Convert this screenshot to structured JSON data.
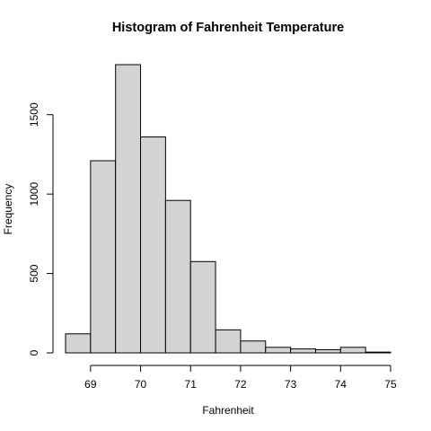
{
  "chart_data": {
    "type": "bar",
    "title": "Histogram of Fahrenheit Temperature",
    "xlabel": "Fahrenheit",
    "ylabel": "Frequency",
    "bins": [
      {
        "start": 68.5,
        "end": 69.0,
        "value": 120
      },
      {
        "start": 69.0,
        "end": 69.5,
        "value": 1210
      },
      {
        "start": 69.5,
        "end": 70.0,
        "value": 1815
      },
      {
        "start": 70.0,
        "end": 70.5,
        "value": 1360
      },
      {
        "start": 70.5,
        "end": 71.0,
        "value": 960
      },
      {
        "start": 71.0,
        "end": 71.5,
        "value": 575
      },
      {
        "start": 71.5,
        "end": 72.0,
        "value": 145
      },
      {
        "start": 72.0,
        "end": 72.5,
        "value": 75
      },
      {
        "start": 72.5,
        "end": 73.0,
        "value": 35
      },
      {
        "start": 73.0,
        "end": 73.5,
        "value": 25
      },
      {
        "start": 73.5,
        "end": 74.0,
        "value": 20
      },
      {
        "start": 74.0,
        "end": 74.5,
        "value": 35
      },
      {
        "start": 74.5,
        "end": 75.0,
        "value": 5
      }
    ],
    "xticks": [
      69,
      70,
      71,
      72,
      73,
      74,
      75
    ],
    "yticks": [
      0,
      500,
      1000,
      1500
    ],
    "xlim": [
      68.5,
      75
    ],
    "ylim": [
      0,
      1815
    ],
    "grid": false,
    "colors": {
      "bar_fill": "#d3d3d3",
      "bar_stroke": "#000000"
    }
  }
}
